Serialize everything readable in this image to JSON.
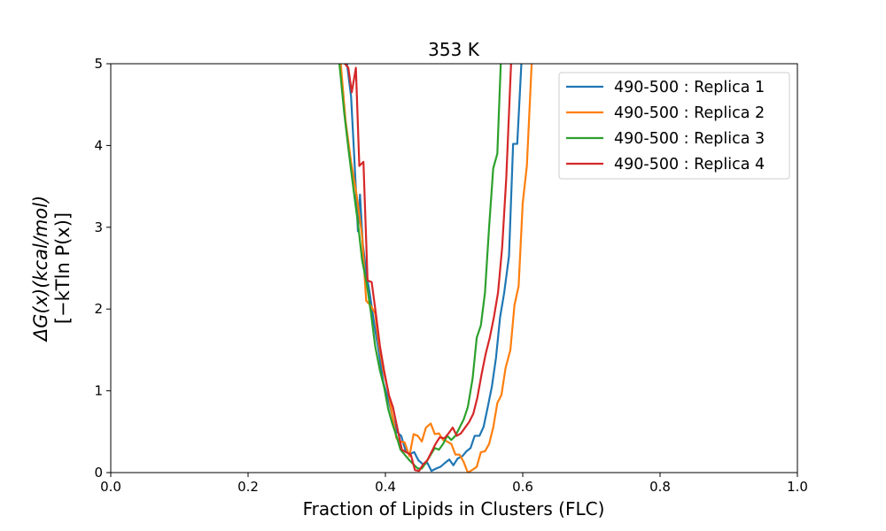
{
  "chart_data": {
    "type": "line",
    "title": "353 K",
    "xlabel": "Fraction of Lipids in Clusters (FLC)",
    "ylabel_line1": "ΔG(x)(kcal/mol)",
    "ylabel_line2": "[−kTln P(x)]",
    "xlim": [
      0.0,
      1.0
    ],
    "ylim": [
      0,
      5
    ],
    "xticks": [
      0.0,
      0.2,
      0.4,
      0.6,
      0.8,
      1.0
    ],
    "xtick_labels": [
      "0.0",
      "0.2",
      "0.4",
      "0.6",
      "0.8",
      "1.0"
    ],
    "yticks": [
      0,
      1,
      2,
      3,
      4,
      5
    ],
    "ytick_labels": [
      "0",
      "1",
      "2",
      "3",
      "4",
      "5"
    ],
    "grid": false,
    "legend_position": "top-right",
    "series": [
      {
        "name": "490-500 : Replica 1",
        "color": "#1f77b4",
        "points": [
          [
            0.344,
            5.0
          ],
          [
            0.35,
            4.6
          ],
          [
            0.355,
            3.8
          ],
          [
            0.36,
            2.95
          ],
          [
            0.363,
            3.4
          ],
          [
            0.367,
            2.8
          ],
          [
            0.372,
            2.45
          ],
          [
            0.377,
            2.2
          ],
          [
            0.384,
            1.8
          ],
          [
            0.39,
            1.5
          ],
          [
            0.397,
            1.1
          ],
          [
            0.404,
            0.9
          ],
          [
            0.41,
            0.7
          ],
          [
            0.416,
            0.5
          ],
          [
            0.423,
            0.45
          ],
          [
            0.43,
            0.25
          ],
          [
            0.436,
            0.23
          ],
          [
            0.442,
            0.25
          ],
          [
            0.448,
            0.15
          ],
          [
            0.455,
            0.1
          ],
          [
            0.461,
            0.12
          ],
          [
            0.467,
            0.02
          ],
          [
            0.474,
            0.05
          ],
          [
            0.48,
            0.07
          ],
          [
            0.487,
            0.12
          ],
          [
            0.493,
            0.16
          ],
          [
            0.499,
            0.09
          ],
          [
            0.505,
            0.17
          ],
          [
            0.512,
            0.2
          ],
          [
            0.518,
            0.26
          ],
          [
            0.524,
            0.3
          ],
          [
            0.53,
            0.45
          ],
          [
            0.537,
            0.45
          ],
          [
            0.543,
            0.56
          ],
          [
            0.549,
            0.8
          ],
          [
            0.555,
            1.05
          ],
          [
            0.561,
            1.4
          ],
          [
            0.567,
            1.9
          ],
          [
            0.573,
            2.2
          ],
          [
            0.58,
            2.65
          ],
          [
            0.586,
            4.02
          ],
          [
            0.592,
            4.02
          ],
          [
            0.598,
            5.0
          ]
        ]
      },
      {
        "name": "490-500 : Replica 2",
        "color": "#ff7f0e",
        "points": [
          [
            0.335,
            5.0
          ],
          [
            0.342,
            4.3
          ],
          [
            0.35,
            3.8
          ],
          [
            0.358,
            3.4
          ],
          [
            0.366,
            2.9
          ],
          [
            0.372,
            2.1
          ],
          [
            0.378,
            2.05
          ],
          [
            0.385,
            1.95
          ],
          [
            0.39,
            1.6
          ],
          [
            0.397,
            1.25
          ],
          [
            0.404,
            1.0
          ],
          [
            0.41,
            0.7
          ],
          [
            0.416,
            0.42
          ],
          [
            0.422,
            0.38
          ],
          [
            0.428,
            0.37
          ],
          [
            0.435,
            0.2
          ],
          [
            0.441,
            0.47
          ],
          [
            0.447,
            0.45
          ],
          [
            0.453,
            0.38
          ],
          [
            0.459,
            0.55
          ],
          [
            0.466,
            0.6
          ],
          [
            0.472,
            0.47
          ],
          [
            0.478,
            0.48
          ],
          [
            0.484,
            0.4
          ],
          [
            0.49,
            0.38
          ],
          [
            0.496,
            0.35
          ],
          [
            0.502,
            0.22
          ],
          [
            0.508,
            0.22
          ],
          [
            0.514,
            0.13
          ],
          [
            0.52,
            0.0
          ],
          [
            0.526,
            0.03
          ],
          [
            0.533,
            0.07
          ],
          [
            0.539,
            0.25
          ],
          [
            0.545,
            0.26
          ],
          [
            0.551,
            0.35
          ],
          [
            0.557,
            0.55
          ],
          [
            0.563,
            0.85
          ],
          [
            0.569,
            0.95
          ],
          [
            0.575,
            1.28
          ],
          [
            0.582,
            1.5
          ],
          [
            0.588,
            2.05
          ],
          [
            0.594,
            2.28
          ],
          [
            0.6,
            3.3
          ],
          [
            0.606,
            3.75
          ],
          [
            0.613,
            5.0
          ]
        ]
      },
      {
        "name": "490-500 : Replica 3",
        "color": "#2ca02c",
        "points": [
          [
            0.333,
            5.0
          ],
          [
            0.34,
            4.4
          ],
          [
            0.347,
            3.9
          ],
          [
            0.353,
            3.5
          ],
          [
            0.36,
            3.05
          ],
          [
            0.366,
            2.6
          ],
          [
            0.373,
            2.3
          ],
          [
            0.379,
            1.95
          ],
          [
            0.385,
            1.55
          ],
          [
            0.392,
            1.25
          ],
          [
            0.398,
            1.05
          ],
          [
            0.404,
            0.78
          ],
          [
            0.41,
            0.6
          ],
          [
            0.416,
            0.45
          ],
          [
            0.422,
            0.28
          ],
          [
            0.428,
            0.22
          ],
          [
            0.435,
            0.15
          ],
          [
            0.441,
            0.1
          ],
          [
            0.447,
            0.05
          ],
          [
            0.453,
            0.05
          ],
          [
            0.459,
            0.12
          ],
          [
            0.466,
            0.22
          ],
          [
            0.472,
            0.3
          ],
          [
            0.478,
            0.28
          ],
          [
            0.484,
            0.35
          ],
          [
            0.49,
            0.45
          ],
          [
            0.496,
            0.4
          ],
          [
            0.502,
            0.45
          ],
          [
            0.508,
            0.55
          ],
          [
            0.514,
            0.65
          ],
          [
            0.52,
            0.8
          ],
          [
            0.527,
            1.15
          ],
          [
            0.533,
            1.65
          ],
          [
            0.539,
            1.8
          ],
          [
            0.545,
            2.2
          ],
          [
            0.551,
            3.0
          ],
          [
            0.557,
            3.72
          ],
          [
            0.563,
            3.9
          ],
          [
            0.568,
            5.0
          ]
        ]
      },
      {
        "name": "490-500 : Replica 4",
        "color": "#d62728",
        "points": [
          [
            0.341,
            5.0
          ],
          [
            0.346,
            4.95
          ],
          [
            0.351,
            4.65
          ],
          [
            0.357,
            4.95
          ],
          [
            0.362,
            3.75
          ],
          [
            0.368,
            3.8
          ],
          [
            0.374,
            2.35
          ],
          [
            0.38,
            2.33
          ],
          [
            0.386,
            1.95
          ],
          [
            0.392,
            1.55
          ],
          [
            0.398,
            1.25
          ],
          [
            0.405,
            0.95
          ],
          [
            0.411,
            0.8
          ],
          [
            0.418,
            0.52
          ],
          [
            0.424,
            0.28
          ],
          [
            0.43,
            0.25
          ],
          [
            0.437,
            0.22
          ],
          [
            0.443,
            0.03
          ],
          [
            0.449,
            0.02
          ],
          [
            0.455,
            0.1
          ],
          [
            0.461,
            0.15
          ],
          [
            0.467,
            0.25
          ],
          [
            0.473,
            0.35
          ],
          [
            0.479,
            0.43
          ],
          [
            0.486,
            0.42
          ],
          [
            0.492,
            0.48
          ],
          [
            0.498,
            0.55
          ],
          [
            0.504,
            0.45
          ],
          [
            0.51,
            0.48
          ],
          [
            0.516,
            0.55
          ],
          [
            0.522,
            0.62
          ],
          [
            0.528,
            0.72
          ],
          [
            0.534,
            0.92
          ],
          [
            0.54,
            1.2
          ],
          [
            0.546,
            1.45
          ],
          [
            0.552,
            1.65
          ],
          [
            0.558,
            1.9
          ],
          [
            0.564,
            2.2
          ],
          [
            0.57,
            2.75
          ],
          [
            0.576,
            3.6
          ],
          [
            0.583,
            5.0
          ]
        ]
      }
    ]
  }
}
